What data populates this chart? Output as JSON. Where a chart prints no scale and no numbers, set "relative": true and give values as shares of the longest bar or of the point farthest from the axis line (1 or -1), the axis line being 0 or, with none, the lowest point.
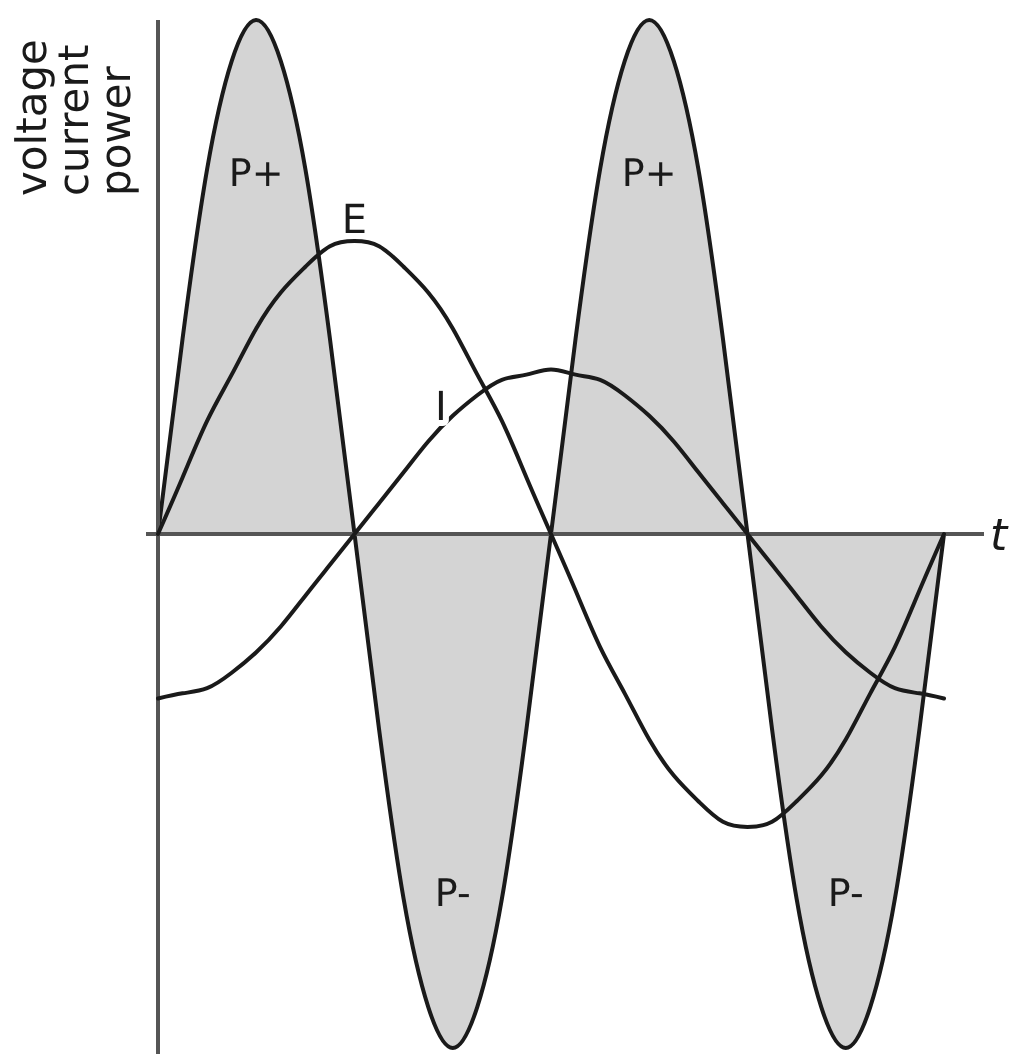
{
  "chart_data": {
    "type": "line",
    "relative": true,
    "xlabel": "t",
    "ylabel": "voltage\ncurrent\npower",
    "categories": [
      null,
      null,
      null,
      null,
      null,
      null,
      null,
      null,
      null,
      null,
      null,
      null,
      null,
      null,
      null,
      null,
      null,
      null,
      null,
      null,
      null,
      null,
      null,
      null,
      null,
      null,
      null,
      null,
      null,
      null,
      null,
      null,
      null
    ],
    "series": [
      {
        "type": "area",
        "color": "#d4d4d4",
        "values": [
          0,
          0.38,
          0.71,
          0.92,
          1,
          0.92,
          0.71,
          0.38,
          0,
          -0.38,
          -0.71,
          -0.92,
          -1,
          -0.92,
          -0.71,
          -0.38,
          0,
          0.38,
          0.71,
          0.92,
          1,
          0.92,
          0.71,
          0.38,
          0,
          -0.38,
          -0.71,
          -0.92,
          -1,
          -0.92,
          -0.71,
          -0.38,
          0
        ]
      },
      {
        "name": "E",
        "color": "#1a1a1a",
        "values": [
          0,
          0.11,
          0.22,
          0.31,
          0.4,
          0.47,
          0.52,
          0.56,
          0.57,
          0.56,
          0.52,
          0.47,
          0.4,
          0.31,
          0.22,
          0.11,
          0,
          -0.11,
          -0.22,
          -0.31,
          -0.4,
          -0.47,
          -0.52,
          -0.56,
          -0.57,
          -0.56,
          -0.52,
          -0.47,
          -0.4,
          -0.31,
          -0.22,
          -0.11,
          0
        ]
      },
      {
        "name": "I",
        "color": "#1a1a1a",
        "values": [
          -0.32,
          -0.31,
          -0.3,
          -0.27,
          -0.23,
          -0.18,
          -0.12,
          -0.06,
          0,
          0.06,
          0.12,
          0.18,
          0.23,
          0.27,
          0.3,
          0.31,
          0.32,
          0.31,
          0.3,
          0.27,
          0.23,
          0.18,
          0.12,
          0.06,
          0,
          -0.06,
          -0.12,
          -0.18,
          -0.23,
          -0.27,
          -0.3,
          -0.31,
          -0.32
        ]
      }
    ],
    "annotations": [
      "P+",
      "P-",
      "P+",
      "P-"
    ]
  }
}
